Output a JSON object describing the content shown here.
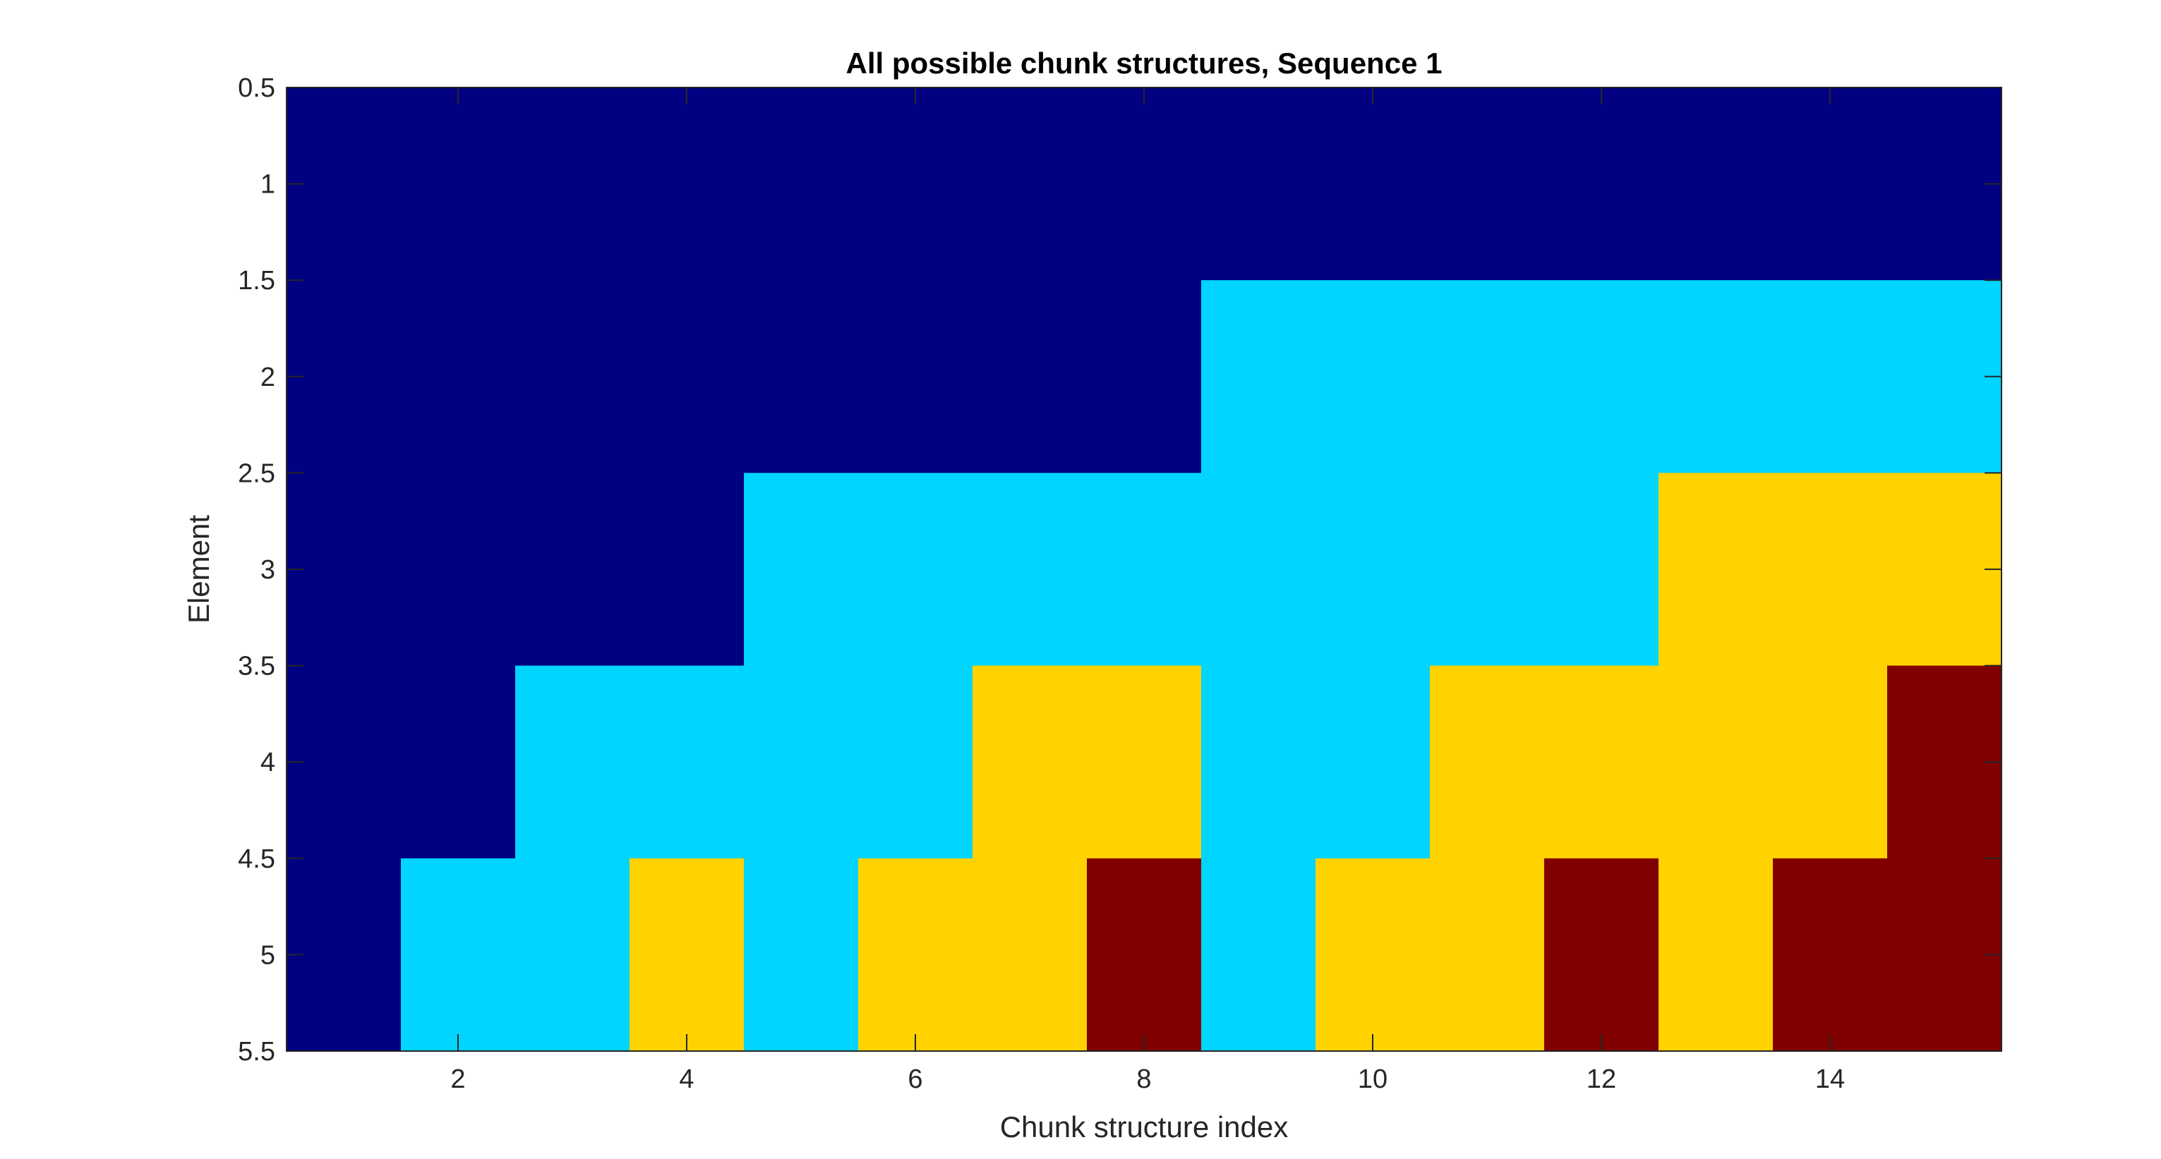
{
  "chart_data": {
    "type": "heatmap",
    "title": "All possible chunk structures, Sequence 1",
    "xlabel": "Chunk structure index",
    "ylabel": "Element",
    "xlim": [
      0.5,
      15.5
    ],
    "ylim": [
      0.5,
      5.5
    ],
    "y_direction": "reverse",
    "x_ticks": [
      2,
      4,
      6,
      8,
      10,
      12,
      14
    ],
    "x_tick_labels": [
      "2",
      "4",
      "6",
      "8",
      "10",
      "12",
      "14"
    ],
    "y_ticks": [
      0.5,
      1,
      1.5,
      2,
      2.5,
      3,
      3.5,
      4,
      4.5,
      5,
      5.5
    ],
    "y_tick_labels": [
      "0.5",
      "1",
      "1.5",
      "2",
      "2.5",
      "3",
      "3.5",
      "4",
      "4.5",
      "5",
      "5.5"
    ],
    "grid": false,
    "colormap": {
      "1": "#000080",
      "2": "#00d5ff",
      "3": "#ffd200",
      "4": "#800000"
    },
    "values": [
      [
        1,
        1,
        1,
        1,
        1
      ],
      [
        1,
        1,
        1,
        1,
        2
      ],
      [
        1,
        1,
        1,
        2,
        2
      ],
      [
        1,
        1,
        1,
        2,
        3
      ],
      [
        1,
        1,
        2,
        2,
        2
      ],
      [
        1,
        1,
        2,
        2,
        3
      ],
      [
        1,
        1,
        2,
        3,
        3
      ],
      [
        1,
        1,
        2,
        3,
        4
      ],
      [
        1,
        2,
        2,
        2,
        2
      ],
      [
        1,
        2,
        2,
        2,
        3
      ],
      [
        1,
        2,
        2,
        3,
        3
      ],
      [
        1,
        2,
        2,
        3,
        4
      ],
      [
        1,
        2,
        3,
        3,
        3
      ],
      [
        1,
        2,
        3,
        3,
        4
      ],
      [
        1,
        2,
        3,
        4,
        4
      ]
    ]
  }
}
